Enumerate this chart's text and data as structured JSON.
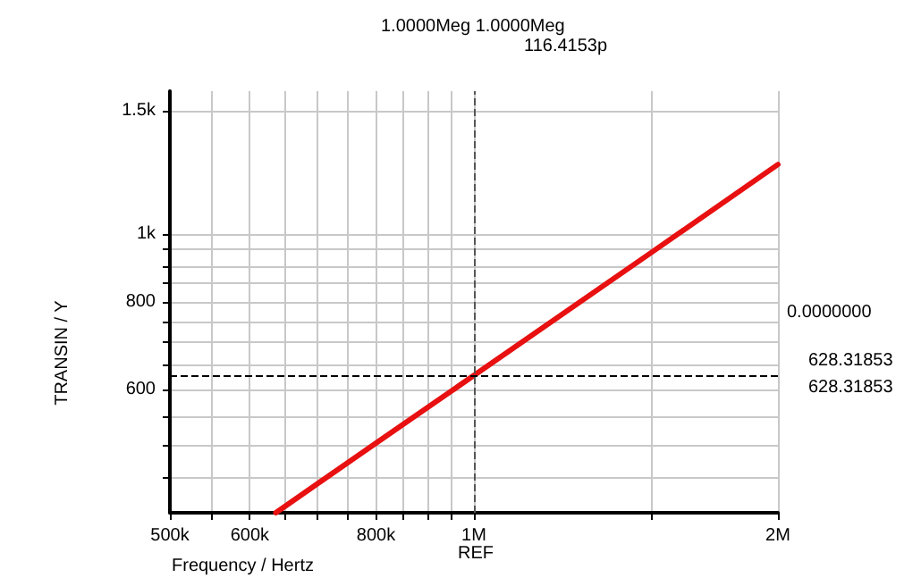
{
  "chart_data": {
    "type": "line",
    "xlabel": "Frequency / Hertz",
    "ylabel": "TRANSIN / Y",
    "log": "xy",
    "x": [
      636600,
      700000,
      800000,
      1000000,
      1500000,
      2000000
    ],
    "series": [
      {
        "color": "#e81010",
        "values": [
          400,
          440,
          503,
          628.3,
          942,
          1257
        ]
      }
    ],
    "xlim": [
      500000,
      2000000
    ],
    "xticks": [
      {
        "value": 500000,
        "label": "500k"
      },
      {
        "value": 550000,
        "label": null
      },
      {
        "value": 600000,
        "label": "600k"
      },
      {
        "value": 650000,
        "label": null
      },
      {
        "value": 700000,
        "label": null
      },
      {
        "value": 750000,
        "label": null
      },
      {
        "value": 800000,
        "label": "800k"
      },
      {
        "value": 850000,
        "label": null
      },
      {
        "value": 900000,
        "label": null
      },
      {
        "value": 950000,
        "label": null
      },
      {
        "value": 1000000,
        "label": "1M"
      },
      {
        "value": 1500000,
        "label": null
      },
      {
        "value": 2000000,
        "label": "2M"
      }
    ],
    "ylim": [
      400,
      1600
    ],
    "yticks": [
      {
        "value": 450,
        "label": null
      },
      {
        "value": 500,
        "label": null
      },
      {
        "value": 550,
        "label": null
      },
      {
        "value": 600,
        "label": "600"
      },
      {
        "value": 650,
        "label": null
      },
      {
        "value": 700,
        "label": null
      },
      {
        "value": 750,
        "label": null
      },
      {
        "value": 800,
        "label": "800"
      },
      {
        "value": 850,
        "label": null
      },
      {
        "value": 900,
        "label": null
      },
      {
        "value": 950,
        "label": null
      },
      {
        "value": 1000,
        "label": "1k"
      },
      {
        "value": 1500,
        "label": "1.5k"
      }
    ],
    "grid": true,
    "marker": "none",
    "line_style": "solid",
    "ref_lines": [
      {
        "axis": "x",
        "value": 1000000,
        "line_style": "dashed",
        "color": "#555555"
      },
      {
        "axis": "y",
        "value": 628.31853,
        "line_style": "dashed",
        "color": "#000000"
      }
    ],
    "annotations": [
      "1.0000Meg 1.0000Meg",
      "116.4153p",
      "0.0000000",
      "628.31853",
      "628.31853",
      "REF"
    ]
  }
}
